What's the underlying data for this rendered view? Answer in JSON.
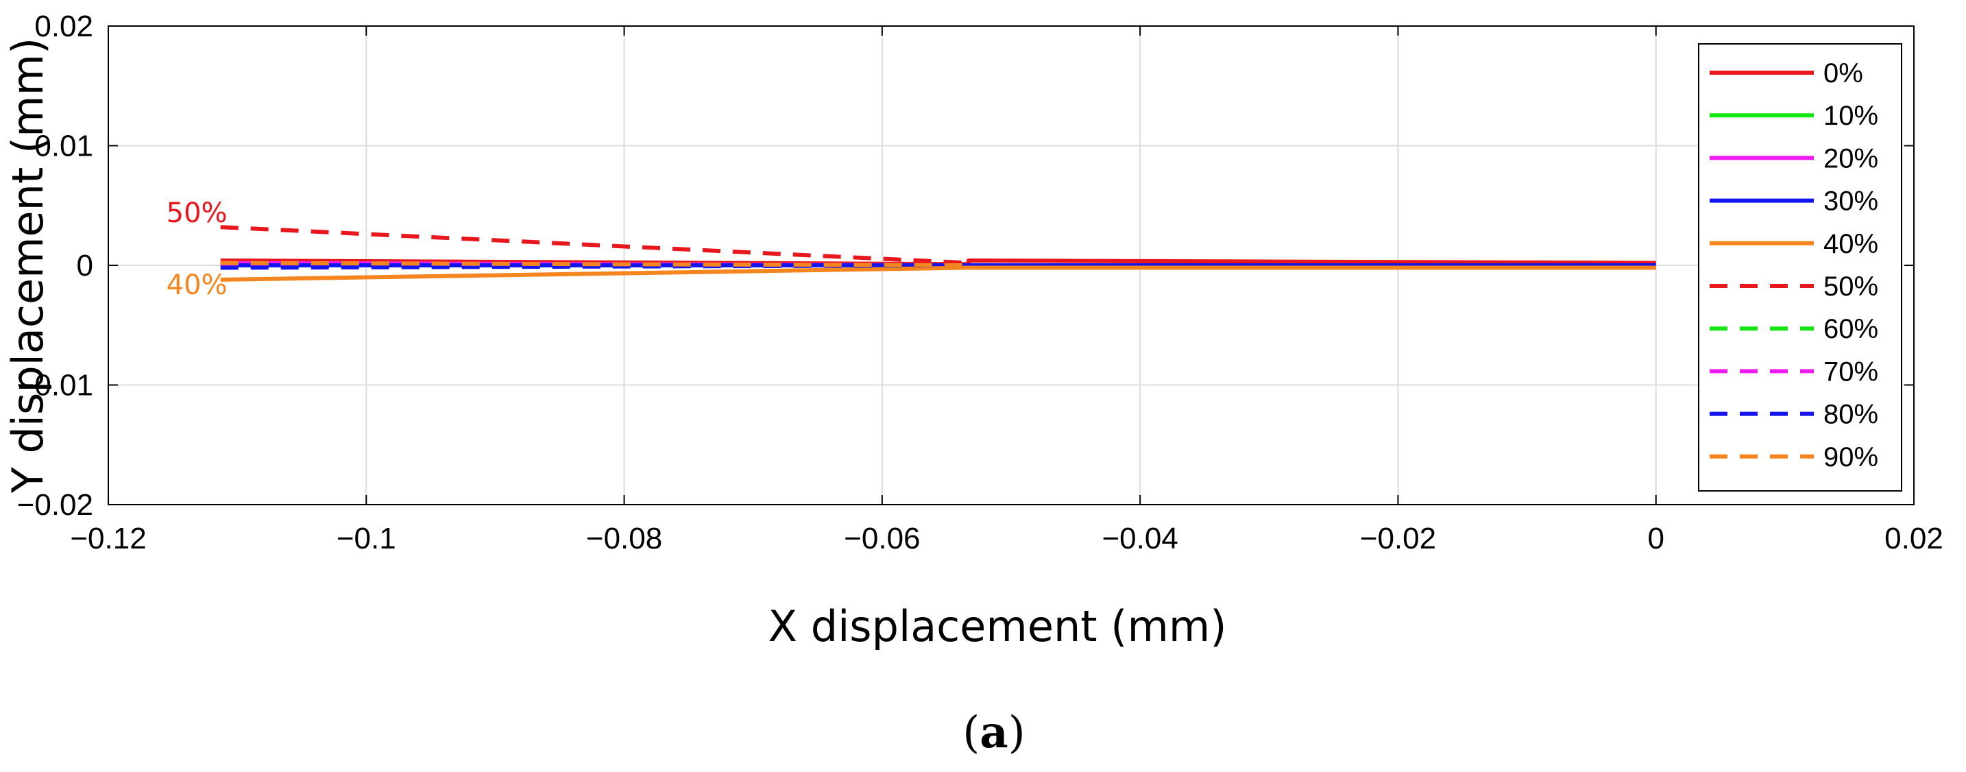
{
  "chart_data": {
    "type": "line",
    "xlabel": "X displacement (mm)",
    "ylabel": "Y displacement (mm)",
    "xlim": [
      -0.12,
      0.02
    ],
    "ylim": [
      -0.02,
      0.02
    ],
    "xticks": [
      -0.12,
      -0.1,
      -0.08,
      -0.06,
      -0.04,
      -0.02,
      0,
      0.02
    ],
    "xtick_labels": [
      "−0.12",
      "−0.1",
      "−0.08",
      "−0.06",
      "−0.04",
      "−0.02",
      "0",
      "0.02"
    ],
    "yticks": [
      -0.02,
      -0.01,
      0,
      0.01,
      0.02
    ],
    "ytick_labels": [
      "−0.02",
      "−0.01",
      "0",
      "0.01",
      "0.02"
    ],
    "grid": true,
    "legend_position": "right",
    "series": [
      {
        "name": "0%",
        "color": "#e8161d",
        "dash": false,
        "x": [
          -0.1113,
          -0.0533,
          -0.0533,
          0
        ],
        "y": [
          0.0004,
          0.0001,
          0.0004,
          0.0002
        ]
      },
      {
        "name": "10%",
        "color": "#15e515",
        "dash": false,
        "x": [
          -0.1113,
          -0.0533,
          0
        ],
        "y": [
          0.0001,
          0.0,
          0.0
        ]
      },
      {
        "name": "20%",
        "color": "#ee1cee",
        "dash": false,
        "x": [
          -0.1113,
          -0.0533,
          0
        ],
        "y": [
          0.0002,
          0.0,
          0.0
        ]
      },
      {
        "name": "30%",
        "color": "#1414ee",
        "dash": false,
        "x": [
          -0.1113,
          -0.0533,
          0
        ],
        "y": [
          0.0,
          0.0,
          0.0
        ]
      },
      {
        "name": "40%",
        "color": "#f5861f",
        "dash": false,
        "x": [
          -0.1113,
          -0.0533,
          0
        ],
        "y": [
          -0.0012,
          -0.0002,
          -0.0002
        ]
      },
      {
        "name": "50%",
        "color": "#e8161d",
        "dash": true,
        "x": [
          -0.1113,
          -0.0533
        ],
        "y": [
          0.0032,
          0.0002
        ]
      },
      {
        "name": "60%",
        "color": "#15e515",
        "dash": true,
        "x": [
          -0.1113,
          -0.0533
        ],
        "y": [
          0.0001,
          0.0
        ]
      },
      {
        "name": "70%",
        "color": "#ee1cee",
        "dash": true,
        "x": [
          -0.1113,
          -0.0533
        ],
        "y": [
          0.0001,
          0.0
        ]
      },
      {
        "name": "80%",
        "color": "#1414ee",
        "dash": true,
        "x": [
          -0.1113,
          -0.0533
        ],
        "y": [
          -0.0002,
          0.0
        ]
      },
      {
        "name": "90%",
        "color": "#f5861f",
        "dash": true,
        "x": [
          -0.1113,
          -0.0533
        ],
        "y": [
          0.0002,
          0.0
        ]
      }
    ],
    "annotations": [
      {
        "text": "50%",
        "x": -0.1155,
        "y": 0.0036,
        "color": "#e8161d"
      },
      {
        "text": "40%",
        "x": -0.1155,
        "y": -0.0024,
        "color": "#f5861f"
      }
    ]
  },
  "caption": {
    "open": "(",
    "letter": "a",
    "close": ")"
  }
}
